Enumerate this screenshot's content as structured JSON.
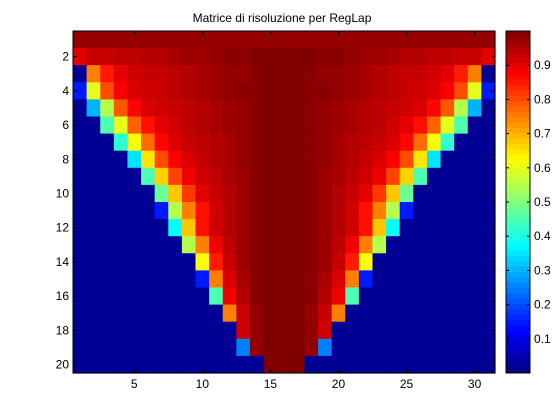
{
  "chart_data": {
    "type": "heatmap",
    "title": "Matrice di risoluzione per RegLap",
    "xlabel": "",
    "ylabel": "",
    "columns": 31,
    "rows": 20,
    "x_tick_labels": [
      "5",
      "10",
      "15",
      "20",
      "25",
      "30"
    ],
    "x_tick_values": [
      5,
      10,
      15,
      20,
      25,
      30
    ],
    "y_tick_labels": [
      "2",
      "4",
      "6",
      "8",
      "10",
      "12",
      "14",
      "16",
      "18",
      "20"
    ],
    "y_tick_values": [
      2,
      4,
      6,
      8,
      10,
      12,
      14,
      16,
      18,
      20
    ],
    "y_direction": "reverse",
    "clim": [
      0,
      1
    ],
    "colormap": "jet",
    "colorbar": {
      "placement": "right",
      "tick_labels": [
        "0.1",
        "0.2",
        "0.3",
        "0.4",
        "0.5",
        "0.6",
        "0.7",
        "0.8",
        "0.9"
      ],
      "tick_values": [
        0.1,
        0.2,
        0.3,
        0.4,
        0.5,
        0.6,
        0.7,
        0.8,
        0.9
      ]
    },
    "background_value": 0.02,
    "row_profiles": [
      {
        "row": 1,
        "center": [
          0.98,
          0.98,
          0.98,
          0.98,
          0.98,
          0.98,
          0.98,
          0.98,
          0.98,
          0.98,
          0.98,
          0.98,
          0.98,
          0.98,
          0.98,
          0.98
        ],
        "edge": [
          0.95,
          0.93,
          0.9
        ]
      },
      {
        "row": 2,
        "center": [
          1.0,
          1.0,
          1.0,
          0.99,
          0.99,
          0.98,
          0.97,
          0.97,
          0.96,
          0.95,
          0.95,
          0.94,
          0.94,
          0.93,
          0.93
        ],
        "edge": [
          0.9,
          0.87
        ]
      },
      {
        "row": 3,
        "center": [
          1.0,
          1.0,
          0.99,
          0.98,
          0.98,
          0.97,
          0.96,
          0.95,
          0.94,
          0.93,
          0.93,
          0.92,
          0.9,
          0.85
        ],
        "edge": [
          0.75
        ]
      },
      {
        "row": 4,
        "center": [
          1.0,
          1.0,
          0.99,
          0.99,
          0.98,
          0.97,
          0.96,
          0.95,
          0.94,
          0.93,
          0.92,
          0.91,
          0.88,
          0.8
        ],
        "edge": [
          0.6,
          0.15
        ]
      },
      {
        "row": 5,
        "center": [
          1.0,
          1.0,
          0.99,
          0.98,
          0.97,
          0.96,
          0.95,
          0.94,
          0.93,
          0.92,
          0.91,
          0.87,
          0.79
        ],
        "edge": [
          0.55,
          0.3
        ]
      },
      {
        "row": 6,
        "center": [
          1.0,
          1.0,
          0.99,
          0.98,
          0.97,
          0.96,
          0.95,
          0.94,
          0.92,
          0.9,
          0.86,
          0.78
        ],
        "edge": [
          0.6,
          0.45
        ]
      },
      {
        "row": 7,
        "center": [
          1.0,
          1.0,
          0.99,
          0.98,
          0.96,
          0.95,
          0.94,
          0.93,
          0.91,
          0.87,
          0.77
        ],
        "edge": [
          0.62,
          0.42
        ]
      },
      {
        "row": 8,
        "center": [
          1.0,
          1.0,
          0.99,
          0.98,
          0.96,
          0.95,
          0.93,
          0.91,
          0.88,
          0.8
        ],
        "edge": [
          0.65,
          0.35
        ]
      },
      {
        "row": 9,
        "center": [
          1.0,
          1.0,
          0.99,
          0.97,
          0.96,
          0.94,
          0.92,
          0.89,
          0.81
        ],
        "edge": [
          0.67,
          0.45
        ]
      },
      {
        "row": 10,
        "center": [
          1.0,
          1.0,
          0.99,
          0.97,
          0.95,
          0.93,
          0.9,
          0.82
        ],
        "edge": [
          0.68,
          0.48
        ]
      },
      {
        "row": 11,
        "center": [
          1.0,
          1.0,
          0.99,
          0.97,
          0.95,
          0.92,
          0.86
        ],
        "edge": [
          0.75,
          0.55,
          0.15
        ]
      },
      {
        "row": 12,
        "center": [
          1.0,
          1.0,
          0.99,
          0.97,
          0.95,
          0.92,
          0.86
        ],
        "edge": [
          0.68,
          0.38
        ]
      },
      {
        "row": 13,
        "center": [
          1.0,
          1.0,
          0.99,
          0.97,
          0.94,
          0.89
        ],
        "edge": [
          0.75,
          0.55
        ]
      },
      {
        "row": 14,
        "center": [
          1.0,
          1.0,
          0.99,
          0.97,
          0.93,
          0.85
        ],
        "edge": [
          0.62
        ]
      },
      {
        "row": 15,
        "center": [
          1.0,
          1.0,
          0.99,
          0.96,
          0.91
        ],
        "edge": [
          0.75,
          0.15
        ]
      },
      {
        "row": 16,
        "center": [
          1.0,
          1.0,
          0.99,
          0.95,
          0.89
        ],
        "edge": [
          0.45
        ]
      },
      {
        "row": 17,
        "center": [
          1.0,
          1.0,
          0.98,
          0.93
        ],
        "edge": [
          0.75
        ]
      },
      {
        "row": 18,
        "center": [
          1.0,
          1.0,
          0.98
        ],
        "edge": [
          0.92
        ]
      },
      {
        "row": 19,
        "center": [
          1.0,
          1.0,
          0.98
        ],
        "edge": [
          0.25
        ]
      },
      {
        "row": 20,
        "center": [
          1.0,
          1.0
        ],
        "edge": []
      }
    ]
  }
}
